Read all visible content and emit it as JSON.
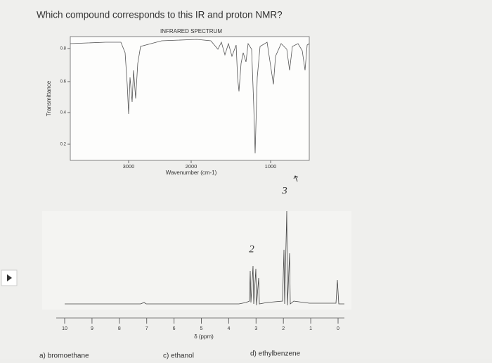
{
  "question": "Which compound corresponds to this IR and proton NMR?",
  "ir_spectrum": {
    "title": "INFRARED SPECTRUM",
    "y_label": "Transmittance",
    "y_ticks": [
      "0.8",
      "0.6",
      "0.4",
      "0.2"
    ],
    "x_ticks": [
      "3000",
      "2000",
      "1000"
    ],
    "x_label": "Wavenumber (cm-1)"
  },
  "nmr_spectrum": {
    "x_ticks": [
      "10",
      "9",
      "8",
      "7",
      "6",
      "5",
      "4",
      "3",
      "2",
      "1",
      "0"
    ],
    "x_label": "δ (ppm)",
    "annotations": [
      "2",
      "3"
    ]
  },
  "options": [
    "a) bromoethane",
    "c) ethanol",
    "d) ethylbenzene"
  ]
}
